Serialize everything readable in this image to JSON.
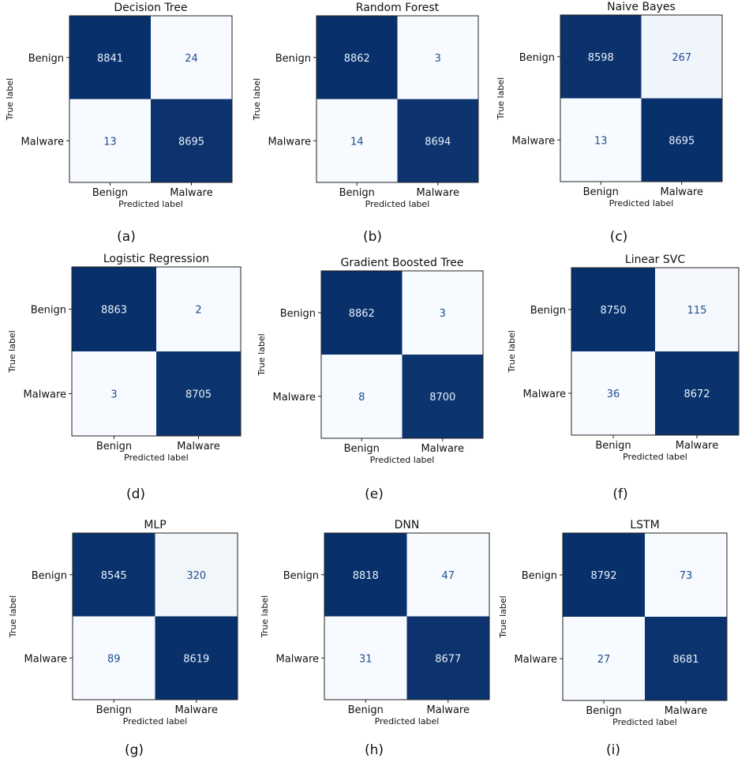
{
  "figure": {
    "colors": {
      "dark": "#08306b",
      "light": "#f7fbff",
      "dark_text": "#e8f1fb",
      "light_text": "#1f4e8c"
    },
    "captions": [
      "(a)",
      "(b)",
      "(c)",
      "(d)",
      "(e)",
      "(f)",
      "(g)",
      "(h)",
      "(i)"
    ]
  },
  "chart_data": [
    {
      "type": "heatmap",
      "title": "Decision Tree",
      "xlabel": "Predicted label",
      "ylabel": "True label",
      "x_categories": [
        "Benign",
        "Malware"
      ],
      "y_categories": [
        "Benign",
        "Malware"
      ],
      "values": [
        [
          8841,
          24
        ],
        [
          13,
          8695
        ]
      ]
    },
    {
      "type": "heatmap",
      "title": "Random Forest",
      "xlabel": "Predicted label",
      "ylabel": "True label",
      "x_categories": [
        "Benign",
        "Malware"
      ],
      "y_categories": [
        "Benign",
        "Malware"
      ],
      "values": [
        [
          8862,
          3
        ],
        [
          14,
          8694
        ]
      ]
    },
    {
      "type": "heatmap",
      "title": "Naive Bayes",
      "xlabel": "Predicted label",
      "ylabel": "True label",
      "x_categories": [
        "Benign",
        "Malware"
      ],
      "y_categories": [
        "Benign",
        "Malware"
      ],
      "values": [
        [
          8598,
          267
        ],
        [
          13,
          8695
        ]
      ]
    },
    {
      "type": "heatmap",
      "title": "Logistic Regression",
      "xlabel": "Predicted label",
      "ylabel": "True label",
      "x_categories": [
        "Benign",
        "Malware"
      ],
      "y_categories": [
        "Benign",
        "Malware"
      ],
      "values": [
        [
          8863,
          2
        ],
        [
          3,
          8705
        ]
      ]
    },
    {
      "type": "heatmap",
      "title": "Gradient Boosted Tree",
      "xlabel": "Predicted label",
      "ylabel": "True label",
      "x_categories": [
        "Benign",
        "Malware"
      ],
      "y_categories": [
        "Benign",
        "Malware"
      ],
      "values": [
        [
          8862,
          3
        ],
        [
          8,
          8700
        ]
      ]
    },
    {
      "type": "heatmap",
      "title": "Linear SVC",
      "xlabel": "Predicted label",
      "ylabel": "True label",
      "x_categories": [
        "Benign",
        "Malware"
      ],
      "y_categories": [
        "Benign",
        "Malware"
      ],
      "values": [
        [
          8750,
          115
        ],
        [
          36,
          8672
        ]
      ]
    },
    {
      "type": "heatmap",
      "title": "MLP",
      "xlabel": "Predicted label",
      "ylabel": "True label",
      "x_categories": [
        "Benign",
        "Malware"
      ],
      "y_categories": [
        "Benign",
        "Malware"
      ],
      "values": [
        [
          8545,
          320
        ],
        [
          89,
          8619
        ]
      ]
    },
    {
      "type": "heatmap",
      "title": "DNN",
      "xlabel": "Predicted label",
      "ylabel": "True label",
      "x_categories": [
        "Benign",
        "Malware"
      ],
      "y_categories": [
        "Benign",
        "Malware"
      ],
      "values": [
        [
          8818,
          47
        ],
        [
          31,
          8677
        ]
      ]
    },
    {
      "type": "heatmap",
      "title": "LSTM",
      "xlabel": "Predicted label",
      "ylabel": "True label",
      "x_categories": [
        "Benign",
        "Malware"
      ],
      "y_categories": [
        "Benign",
        "Malware"
      ],
      "values": [
        [
          8792,
          73
        ],
        [
          27,
          8681
        ]
      ]
    }
  ]
}
